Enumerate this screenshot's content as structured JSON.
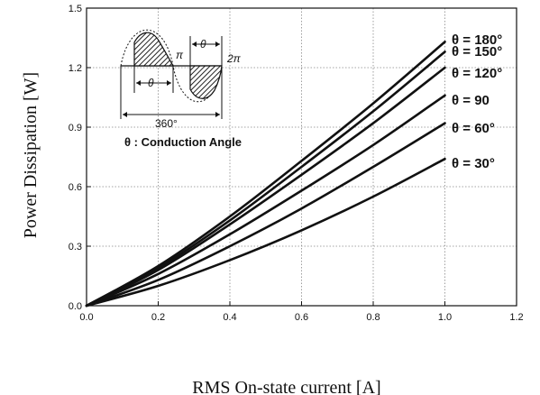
{
  "chart_data": {
    "type": "line",
    "title": "",
    "xlabel": "RMS On-state current [A]",
    "ylabel": "Power Dissipation [W]",
    "xlim": [
      0.0,
      1.2
    ],
    "ylim": [
      0.0,
      1.5
    ],
    "xticks": [
      "0.0",
      "0.2",
      "0.4",
      "0.6",
      "0.8",
      "1.0",
      "1.2"
    ],
    "yticks": [
      "0.0",
      "0.3",
      "0.6",
      "0.9",
      "1.2",
      "1.5"
    ],
    "grid": true,
    "x": [
      0.0,
      0.2,
      0.4,
      0.6,
      0.8,
      1.0
    ],
    "series": [
      {
        "name": "θ = 180°",
        "values": [
          0.0,
          0.2,
          0.45,
          0.73,
          1.02,
          1.33
        ]
      },
      {
        "name": "θ = 150°",
        "values": [
          0.0,
          0.19,
          0.43,
          0.7,
          0.98,
          1.28
        ]
      },
      {
        "name": "θ = 120°",
        "values": [
          0.0,
          0.18,
          0.41,
          0.66,
          0.92,
          1.2
        ]
      },
      {
        "name": "θ = 90",
        "values": [
          0.0,
          0.16,
          0.36,
          0.58,
          0.81,
          1.06
        ]
      },
      {
        "name": "θ = 60°",
        "values": [
          0.0,
          0.13,
          0.3,
          0.49,
          0.7,
          0.92
        ]
      },
      {
        "name": "θ = 30°",
        "values": [
          0.0,
          0.1,
          0.23,
          0.38,
          0.55,
          0.74
        ]
      }
    ],
    "inset": {
      "pi_label": "π",
      "two_pi_label": "2π",
      "theta_label": "θ",
      "degrees_label": "360°",
      "caption": "θ : Conduction Angle"
    }
  }
}
